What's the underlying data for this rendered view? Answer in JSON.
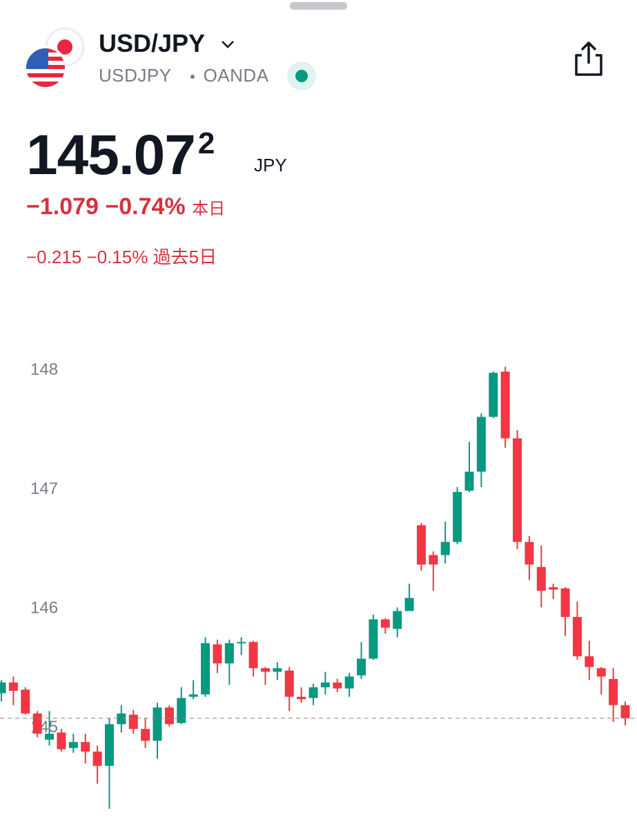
{
  "header": {
    "title": "USD/JPY",
    "symbol": "USDJPY",
    "exchange": "OANDA",
    "price": "145.07",
    "price_last_digit": "2",
    "currency": "JPY",
    "day_change": "−1.079",
    "day_change_pct": "−0.74%",
    "day_label": "本日",
    "week_change": "−0.215",
    "week_change_pct": "−0.15%",
    "week_label": "過去5日"
  },
  "chart_data": {
    "type": "candlestick",
    "up_color": "#089981",
    "down_color": "#f23645",
    "tick_color": "#787b86",
    "ylim": [
      144.15,
      148.21
    ],
    "yticks": [
      145,
      146,
      147,
      148
    ],
    "open": [
      145.29,
      145.38,
      145.32,
      145.12,
      144.9,
      144.96,
      144.83,
      144.88,
      144.8,
      144.68,
      145.03,
      145.11,
      144.99,
      144.89,
      145.17,
      145.04,
      145.26,
      145.28,
      145.7,
      145.54,
      145.71,
      145.72,
      145.5,
      145.47,
      145.48,
      145.26,
      145.25,
      145.34,
      145.38,
      145.33,
      145.44,
      145.58,
      145.91,
      145.83,
      145.98,
      146.7,
      146.45,
      146.45,
      146.56,
      146.99,
      147.15,
      147.61,
      147.99,
      147.43,
      146.56,
      146.35,
      146.18,
      146.17,
      145.93,
      145.6,
      145.5,
      145.41,
      145.19
    ],
    "high": [
      145.4,
      145.43,
      145.34,
      145.14,
      145.14,
      144.99,
      144.95,
      144.95,
      144.85,
      145.08,
      145.19,
      145.15,
      145.08,
      145.21,
      145.19,
      145.34,
      145.4,
      145.76,
      145.74,
      145.74,
      145.76,
      145.73,
      145.51,
      145.55,
      145.51,
      145.34,
      145.37,
      145.47,
      145.41,
      145.46,
      145.72,
      145.95,
      145.92,
      146.01,
      146.21,
      146.72,
      146.48,
      146.73,
      147.02,
      147.4,
      147.64,
      147.99,
      148.03,
      147.5,
      146.61,
      146.53,
      146.21,
      146.18,
      146.06,
      145.73,
      145.51,
      145.5,
      145.22
    ],
    "low": [
      145.22,
      145.19,
      145.11,
      144.92,
      144.85,
      144.8,
      144.79,
      144.7,
      144.53,
      144.32,
      144.96,
      144.95,
      144.83,
      144.74,
      145.01,
      145.03,
      145.24,
      145.26,
      145.46,
      145.36,
      145.61,
      145.43,
      145.36,
      145.4,
      145.14,
      145.21,
      145.19,
      145.28,
      145.3,
      145.26,
      145.41,
      145.57,
      145.79,
      145.76,
      145.98,
      146.32,
      146.15,
      146.38,
      146.54,
      146.98,
      147.02,
      147.6,
      147.35,
      146.5,
      146.24,
      146.01,
      146.08,
      145.77,
      145.57,
      145.4,
      145.28,
      145.05,
      145.02
    ],
    "close": [
      145.38,
      145.31,
      145.12,
      144.95,
      144.95,
      144.82,
      144.88,
      144.8,
      144.68,
      145.03,
      145.12,
      144.99,
      144.89,
      145.17,
      145.03,
      145.25,
      145.28,
      145.71,
      145.54,
      145.71,
      145.72,
      145.5,
      145.47,
      145.5,
      145.26,
      145.24,
      145.34,
      145.38,
      145.33,
      145.43,
      145.58,
      145.91,
      145.84,
      145.98,
      146.09,
      146.37,
      146.37,
      146.56,
      146.98,
      147.15,
      147.61,
      147.98,
      147.43,
      146.56,
      146.37,
      146.15,
      146.16,
      145.93,
      145.6,
      145.51,
      145.43,
      145.19,
      145.08
    ]
  }
}
